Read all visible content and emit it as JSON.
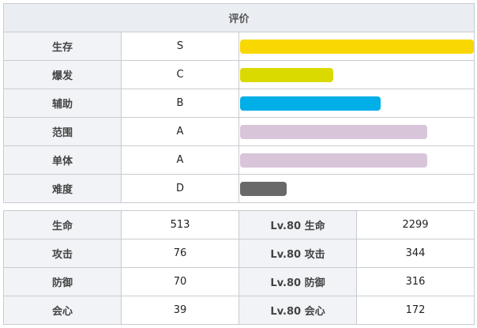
{
  "rating": {
    "header": "评价",
    "rows": [
      {
        "label": "生存",
        "grade": "S",
        "level": 1.0,
        "color": "#f8d800"
      },
      {
        "label": "爆发",
        "grade": "C",
        "level": 0.4,
        "color": "#dada00"
      },
      {
        "label": "辅助",
        "grade": "B",
        "level": 0.6,
        "color": "#00aee8"
      },
      {
        "label": "范围",
        "grade": "A",
        "level": 0.8,
        "color": "#d8c5da"
      },
      {
        "label": "单体",
        "grade": "A",
        "level": 0.8,
        "color": "#d8c5da"
      },
      {
        "label": "难度",
        "grade": "D",
        "level": 0.2,
        "color": "#696969"
      }
    ]
  },
  "stats": {
    "rows": [
      {
        "label": "生命",
        "value": "513",
        "lv_label": "Lv.80 生命",
        "lv_value": "2299"
      },
      {
        "label": "攻击",
        "value": "76",
        "lv_label": "Lv.80 攻击",
        "lv_value": "344"
      },
      {
        "label": "防御",
        "value": "70",
        "lv_label": "Lv.80 防御",
        "lv_value": "316"
      },
      {
        "label": "会心",
        "value": "39",
        "lv_label": "Lv.80 会心",
        "lv_value": "172"
      }
    ]
  }
}
